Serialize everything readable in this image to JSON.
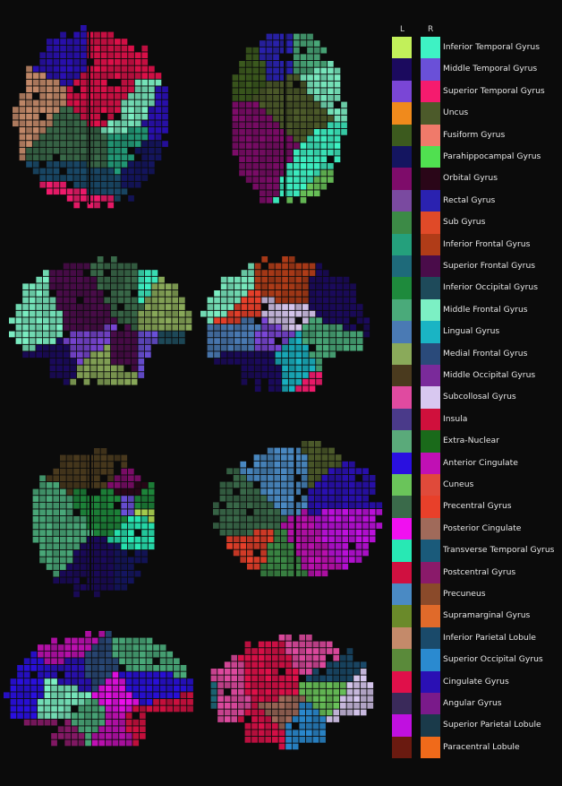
{
  "legend": {
    "left_header": "L",
    "right_header": "R",
    "items": [
      {
        "label": "Inferior Temporal Gyrus",
        "left_color": "#c2f05a",
        "right_color": "#3ef2c4"
      },
      {
        "label": "Middle Temporal Gyrus",
        "left_color": "#1b0a5e",
        "right_color": "#6a50d8"
      },
      {
        "label": "Superior Temporal Gyrus",
        "left_color": "#7a46d6",
        "right_color": "#f51b6e"
      },
      {
        "label": "Uncus",
        "left_color": "#f08a1c",
        "right_color": "#4c5a2a"
      },
      {
        "label": "Fusiform Gyrus",
        "left_color": "#3c5a1e",
        "right_color": "#f07a6a"
      },
      {
        "label": "Parahippocampal Gyrus",
        "left_color": "#141560",
        "right_color": "#50e050"
      },
      {
        "label": "Orbital Gyrus",
        "left_color": "#7e0c6a",
        "right_color": "#2a0618"
      },
      {
        "label": "Rectal Gyrus",
        "left_color": "#7a4aa0",
        "right_color": "#2a22b0"
      },
      {
        "label": "Sub Gyrus",
        "left_color": "#3c8a46",
        "right_color": "#e04a28"
      },
      {
        "label": "Inferior Frontal Gyrus",
        "left_color": "#24a07c",
        "right_color": "#b03c18"
      },
      {
        "label": "Superior Frontal Gyrus",
        "left_color": "#1e6a7a",
        "right_color": "#4a0c4a"
      },
      {
        "label": "Inferior Occipital Gyrus",
        "left_color": "#1e8a3c",
        "right_color": "#1e4a5a"
      },
      {
        "label": "Middle Frontal Gyrus",
        "left_color": "#4aaa7a",
        "right_color": "#7cf0c4"
      },
      {
        "label": "Lingual Gyrus",
        "left_color": "#4a7ab4",
        "right_color": "#1ab4c4"
      },
      {
        "label": "Medial Frontal Gyrus",
        "left_color": "#8aaa5a",
        "right_color": "#2a4a7a"
      },
      {
        "label": "Middle Occipital Gyrus",
        "left_color": "#4a3a1e",
        "right_color": "#7a2a9a"
      },
      {
        "label": "Subcollosal Gyrus",
        "left_color": "#e04aa0",
        "right_color": "#d8c8f0"
      },
      {
        "label": "Insula",
        "left_color": "#4a3a8a",
        "right_color": "#d0103c"
      },
      {
        "label": "Extra-Nuclear",
        "left_color": "#5aaa7a",
        "right_color": "#1a6a1a"
      },
      {
        "label": "Anterior Cingulate",
        "left_color": "#2a10e0",
        "right_color": "#c010b4"
      },
      {
        "label": "Cuneus",
        "left_color": "#6ac45a",
        "right_color": "#e04a3a"
      },
      {
        "label": "Precentral Gyrus",
        "left_color": "#3a6a4a",
        "right_color": "#e8402a"
      },
      {
        "label": "Posterior Cingulate",
        "left_color": "#f010f0",
        "right_color": "#a06a5a"
      },
      {
        "label": "Transverse Temporal Gyrus",
        "left_color": "#28e8b4",
        "right_color": "#1a5a7a"
      },
      {
        "label": "Postcentral Gyrus",
        "left_color": "#d01040",
        "right_color": "#8a1a6a"
      },
      {
        "label": "Precuneus",
        "left_color": "#4a8ac4",
        "right_color": "#8a4a2a"
      },
      {
        "label": "Supramarginal Gyrus",
        "left_color": "#6a8a2a",
        "right_color": "#e06a2a"
      },
      {
        "label": "Inferior Parietal Lobule",
        "left_color": "#c48a6a",
        "right_color": "#1a4a6a"
      },
      {
        "label": "Superior Occipital Gyrus",
        "left_color": "#5a8a3a",
        "right_color": "#2a8ad0"
      },
      {
        "label": "Cingulate Gyrus",
        "left_color": "#e0104a",
        "right_color": "#2a10b4"
      },
      {
        "label": "Angular Gyrus",
        "left_color": "#3a2a5a",
        "right_color": "#7a1a8a"
      },
      {
        "label": "Superior Parietal Lobule",
        "left_color": "#c010e0",
        "right_color": "#1a3a4a"
      },
      {
        "label": "Paracentral Lobule",
        "left_color": "#6a1a10",
        "right_color": "#f06a1a"
      }
    ]
  },
  "colors": {
    "background": "#0b0b0b",
    "text": "#e6e6e6"
  }
}
